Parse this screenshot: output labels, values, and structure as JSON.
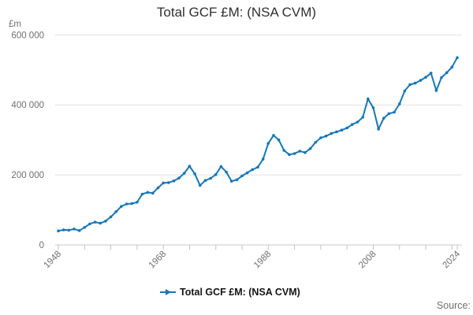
{
  "title": "Total GCF £M: (NSA CVM)",
  "y_axis": {
    "unit_label": "£m",
    "ticks": [
      {
        "value": 600000,
        "label": "600 000"
      },
      {
        "value": 400000,
        "label": "400 000"
      },
      {
        "value": 200000,
        "label": "200 000"
      },
      {
        "value": 0,
        "label": "0"
      }
    ]
  },
  "x_axis": {
    "start": 1948,
    "end": 2024,
    "tick_interval": 5,
    "labeled_ticks": [
      1948,
      1968,
      1988,
      2008,
      2024
    ]
  },
  "legend": {
    "label": "Total GCF £M: (NSA CVM)"
  },
  "source_label": "Source:",
  "colors": {
    "line": "#1577b9",
    "marker": "#1577b9",
    "grid": "#e1e1e1",
    "axis": "#c9c9c9",
    "tick": "#b5c3dd",
    "muted_text": "#6f6f6f",
    "title_text": "#2f2f2f",
    "legend_text": "#141414"
  },
  "chart_data": {
    "type": "line",
    "title": "Total GCF £M: (NSA CVM)",
    "ylabel": "£m",
    "ylim": [
      0,
      600000
    ],
    "y_gridlines": [
      0,
      200000,
      400000,
      600000
    ],
    "x_range": [
      1948,
      2024
    ],
    "legend_position": "bottom",
    "grid": true,
    "series": [
      {
        "name": "Total GCF £M: (NSA CVM)",
        "years": [
          1948,
          1949,
          1950,
          1951,
          1952,
          1953,
          1954,
          1955,
          1956,
          1957,
          1958,
          1959,
          1960,
          1961,
          1962,
          1963,
          1964,
          1965,
          1966,
          1967,
          1968,
          1969,
          1970,
          1971,
          1972,
          1973,
          1974,
          1975,
          1976,
          1977,
          1978,
          1979,
          1980,
          1981,
          1982,
          1983,
          1984,
          1985,
          1986,
          1987,
          1988,
          1989,
          1990,
          1991,
          1992,
          1993,
          1994,
          1995,
          1996,
          1997,
          1998,
          1999,
          2000,
          2001,
          2002,
          2003,
          2004,
          2005,
          2006,
          2007,
          2008,
          2009,
          2010,
          2011,
          2012,
          2013,
          2014,
          2015,
          2016,
          2017,
          2018,
          2019,
          2020,
          2021,
          2022,
          2023,
          2024
        ],
        "values": [
          40000,
          43000,
          42000,
          45500,
          41000,
          50000,
          60000,
          65000,
          62000,
          68000,
          80000,
          95000,
          110000,
          117000,
          118000,
          122000,
          145000,
          150000,
          148000,
          163000,
          177000,
          178000,
          183000,
          191000,
          205000,
          225000,
          203000,
          170000,
          184000,
          190000,
          201000,
          224000,
          208000,
          182000,
          186000,
          197000,
          206000,
          215000,
          222000,
          245000,
          290000,
          313000,
          300000,
          270000,
          258000,
          261000,
          268000,
          264000,
          275000,
          293000,
          306000,
          311000,
          318000,
          323000,
          328000,
          334000,
          344000,
          351000,
          365000,
          417000,
          392000,
          331000,
          362000,
          375000,
          379000,
          403000,
          440000,
          458000,
          462000,
          470000,
          479000,
          491000,
          441000,
          478000,
          492000,
          508000,
          535000
        ]
      }
    ]
  }
}
